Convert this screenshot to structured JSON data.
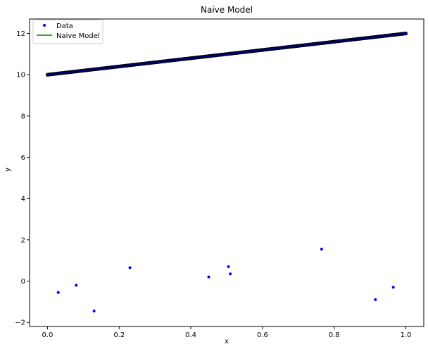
{
  "chart_data": {
    "type": "scatter",
    "title": "Naive Model",
    "xlabel": "x",
    "ylabel": "y",
    "xlim": [
      -0.05,
      1.05
    ],
    "ylim": [
      -2.2,
      12.7
    ],
    "xticks": [
      0.0,
      0.2,
      0.4,
      0.6,
      0.8,
      1.0
    ],
    "xtick_labels": [
      "0.0",
      "0.2",
      "0.4",
      "0.6",
      "0.8",
      "1.0"
    ],
    "yticks": [
      -2,
      0,
      2,
      4,
      6,
      8,
      10,
      12
    ],
    "ytick_labels": [
      "−2",
      "0",
      "2",
      "4",
      "6",
      "8",
      "10",
      "12"
    ],
    "grid": false,
    "legend_position": "top-left",
    "series": [
      {
        "name": "Data",
        "kind": "points",
        "color": "#0000ff",
        "x": [
          0.03,
          0.08,
          0.13,
          0.23,
          0.45,
          0.505,
          0.51,
          0.765,
          0.915,
          0.965
        ],
        "y": [
          -0.55,
          -0.2,
          -1.45,
          0.65,
          0.2,
          0.7,
          0.35,
          1.55,
          -0.9,
          -0.3
        ]
      },
      {
        "name": "Naive Model",
        "kind": "line",
        "color": "#008000",
        "x": [
          0.0,
          1.0
        ],
        "y": [
          10.0,
          12.0
        ]
      }
    ],
    "model_points": {
      "color": "#0000ff",
      "edge_color": "#000000",
      "x_start": 0.0,
      "x_end": 1.0,
      "y_start": 10.0,
      "y_end": 12.0
    }
  }
}
